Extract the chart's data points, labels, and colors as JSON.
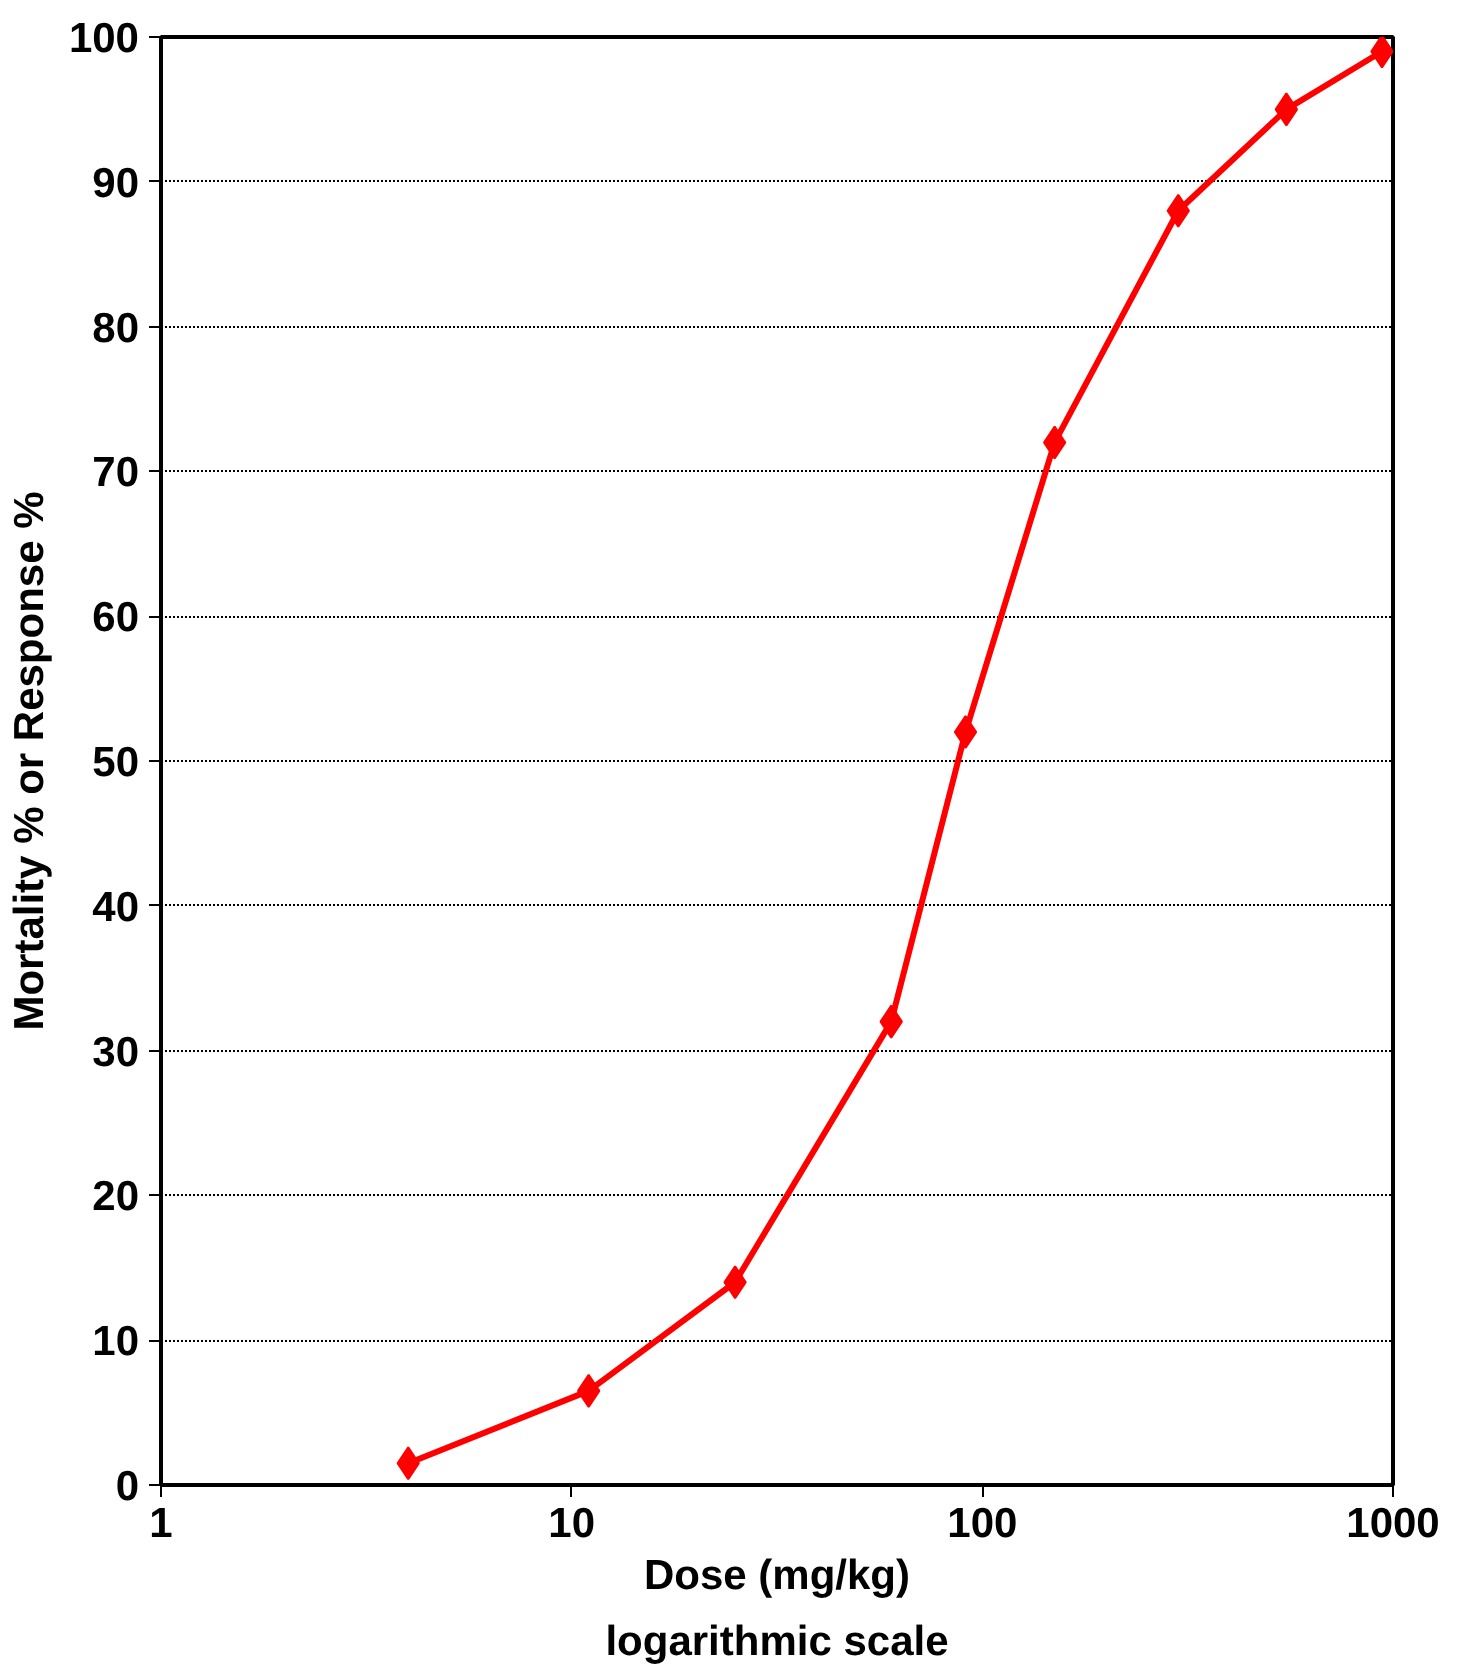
{
  "chart_data": {
    "type": "line",
    "xlabel": "Dose (mg/kg)",
    "ylabel": "Mortality % or Response %",
    "annotations": [
      "logarithmic scale"
    ],
    "x": [
      4,
      11,
      25,
      60,
      91,
      150,
      300,
      550,
      940
    ],
    "series": [
      {
        "color": "#ff0000",
        "values": [
          1.5,
          6.5,
          14,
          32,
          52,
          72,
          88,
          95,
          99
        ]
      }
    ],
    "log": "x",
    "xlim": [
      1,
      1000
    ],
    "xticks": [
      1,
      10,
      100,
      1000
    ],
    "ylim": [
      0,
      100
    ],
    "yticks": [
      0,
      10,
      20,
      30,
      40,
      50,
      60,
      70,
      80,
      90,
      100
    ],
    "grid": "y",
    "marker": "diamond",
    "line_style": "solid"
  }
}
